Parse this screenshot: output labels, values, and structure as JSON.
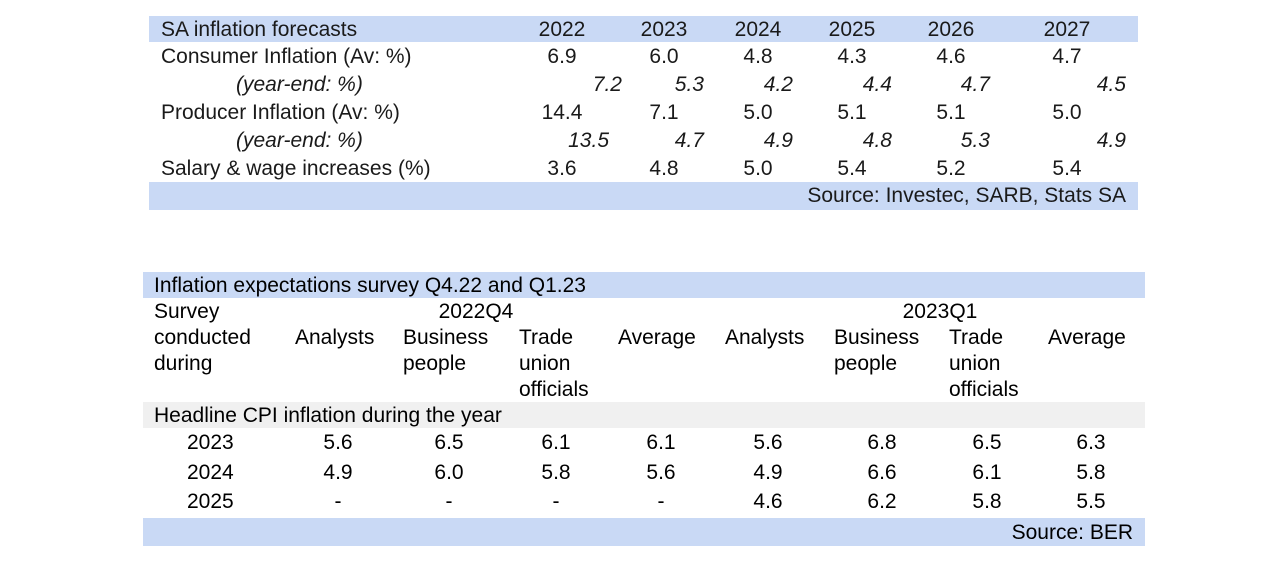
{
  "forecast_table": {
    "title": "SA inflation forecasts",
    "years": [
      "2022",
      "2023",
      "2024",
      "2025",
      "2026",
      "2027"
    ],
    "rows": [
      {
        "label": "Consumer Inflation (Av: %)",
        "values": [
          "6.9",
          "6.0",
          "4.8",
          "4.3",
          "4.6",
          "4.7"
        ]
      },
      {
        "label": "(year-end: %)",
        "values": [
          "7.2",
          "5.3",
          "4.2",
          "4.4",
          "4.7",
          "4.5"
        ]
      },
      {
        "label": "Producer Inflation (Av: %)",
        "values": [
          "14.4",
          "7.1",
          "5.0",
          "5.1",
          "5.1",
          "5.0"
        ]
      },
      {
        "label": "(year-end: %)",
        "values": [
          "13.5",
          "4.7",
          "4.9",
          "4.8",
          "5.3",
          "4.9"
        ]
      },
      {
        "label": "Salary & wage increases (%)",
        "values": [
          "3.6",
          "4.8",
          "5.0",
          "5.4",
          "5.2",
          "5.4"
        ]
      }
    ],
    "source": "Source: Investec, SARB, Stats SA"
  },
  "survey_table": {
    "title": "Inflation expectations survey Q4.22 and Q1.23",
    "row_header": "Survey\nconducted\nduring",
    "group_labels": [
      "2022Q4",
      "2023Q1"
    ],
    "columns": [
      "Analysts",
      "Business\npeople",
      "Trade\nunion\nofficials",
      "Average",
      "Analysts",
      "Business\npeople",
      "Trade\nunion\nofficials",
      "Average"
    ],
    "section_label": "Headline CPI inflation during the year",
    "rows": [
      {
        "year": "2023",
        "values": [
          "5.6",
          "6.5",
          "6.1",
          "6.1",
          "5.6",
          "6.8",
          "6.5",
          "6.3"
        ]
      },
      {
        "year": "2024",
        "values": [
          "4.9",
          "6.0",
          "5.8",
          "5.6",
          "4.9",
          "6.6",
          "6.1",
          "5.8"
        ]
      },
      {
        "year": "2025",
        "values": [
          "-",
          "-",
          "-",
          "-",
          "4.6",
          "6.2",
          "5.8",
          "5.5"
        ]
      }
    ],
    "source": "Source: BER"
  }
}
